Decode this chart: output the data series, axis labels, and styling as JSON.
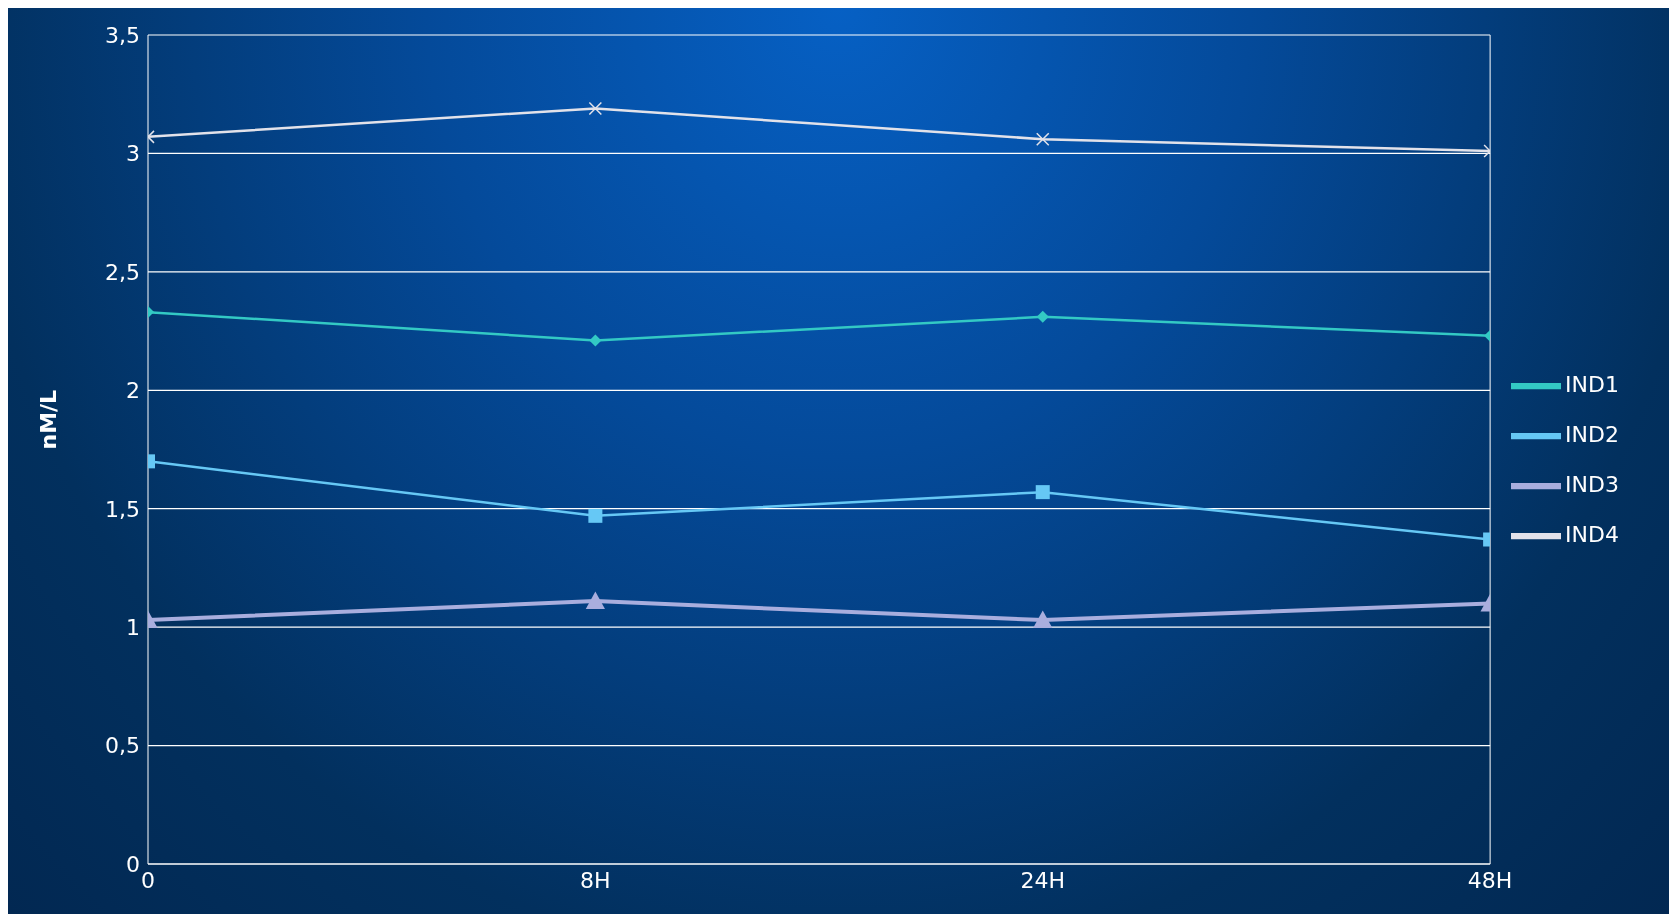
{
  "chart_data": {
    "type": "line",
    "ylabel": "nM/L",
    "categories": [
      "0",
      "8H",
      "24H",
      "48H"
    ],
    "ylim": [
      0,
      3.5
    ],
    "yticks": [
      0,
      {
        "value": 0.5,
        "label": "0,5"
      },
      1,
      {
        "value": 1.5,
        "label": "1,5"
      },
      2,
      {
        "value": 2.5,
        "label": "2,5"
      },
      3,
      {
        "value": 3.5,
        "label": "3,5"
      }
    ],
    "grid": "y",
    "legend": "right",
    "series": [
      {
        "name": "IND1",
        "color": "#33c9c4",
        "marker": "diamond",
        "values": [
          2.33,
          2.21,
          2.31,
          2.23
        ]
      },
      {
        "name": "IND2",
        "color": "#66c8f5",
        "marker": "square",
        "values": [
          1.7,
          1.47,
          1.57,
          1.37
        ]
      },
      {
        "name": "IND3",
        "color": "#a9aede",
        "marker": "triangle",
        "values": [
          1.03,
          1.11,
          1.03,
          1.1
        ]
      },
      {
        "name": "IND4",
        "color": "#e2e2ea",
        "marker": "cross",
        "values": [
          3.07,
          3.19,
          3.06,
          3.01
        ]
      }
    ]
  }
}
